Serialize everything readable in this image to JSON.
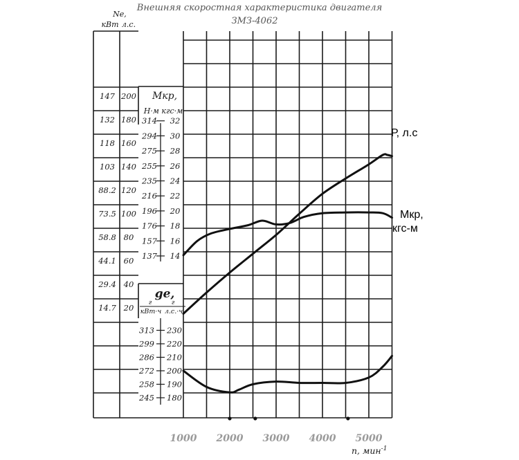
{
  "chart_data": {
    "type": "line",
    "title": "Внешняя скоростная характеристика двигателя",
    "subtitle": "ЗМЗ-4062",
    "xlabel": "n, мин",
    "xlabel_sup": "-1",
    "xlim": [
      1000,
      5500
    ],
    "x_ticks": [
      "1000",
      "2000",
      "3000",
      "4000",
      "5000"
    ],
    "power_axis": {
      "header_symbol": "Ne,",
      "unit_kw": "кВт",
      "unit_hp": "л.с.",
      "ticks": [
        {
          "kw": "147",
          "hp": "200",
          "hp_val": 200
        },
        {
          "kw": "132",
          "hp": "180",
          "hp_val": 180
        },
        {
          "kw": "118",
          "hp": "160",
          "hp_val": 160
        },
        {
          "kw": "103",
          "hp": "140",
          "hp_val": 140
        },
        {
          "kw": "88.2",
          "hp": "120",
          "hp_val": 120
        },
        {
          "kw": "73.5",
          "hp": "100",
          "hp_val": 100
        },
        {
          "kw": "58.8",
          "hp": "80",
          "hp_val": 80
        },
        {
          "kw": "44.1",
          "hp": "60",
          "hp_val": 60
        },
        {
          "kw": "29.4",
          "hp": "40",
          "hp_val": 40
        },
        {
          "kw": "14.7",
          "hp": "20",
          "hp_val": 20
        }
      ]
    },
    "torque_axis": {
      "header_symbol": "Мкр,",
      "units": "Н·м кгс·м",
      "ticks": [
        {
          "nm": "314",
          "kgs": "32",
          "val": 32
        },
        {
          "nm": "294",
          "kgs": "30",
          "val": 30
        },
        {
          "nm": "275",
          "kgs": "28",
          "val": 28
        },
        {
          "nm": "255",
          "kgs": "26",
          "val": 26
        },
        {
          "nm": "235",
          "kgs": "24",
          "val": 24
        },
        {
          "nm": "216",
          "kgs": "22",
          "val": 22
        },
        {
          "nm": "196",
          "kgs": "20",
          "val": 20
        },
        {
          "nm": "176",
          "kgs": "18",
          "val": 18
        },
        {
          "nm": "157",
          "kgs": "16",
          "val": 16
        },
        {
          "nm": "137",
          "kgs": "14",
          "val": 14
        }
      ]
    },
    "fuel_axis": {
      "header_symbol": "ge,",
      "unit_left": "кВт·ч",
      "unit_right": "л.с.·ч",
      "unit_num": "г",
      "ticks": [
        {
          "kwh": "313",
          "hph": "230",
          "val": 230
        },
        {
          "kwh": "299",
          "hph": "220",
          "val": 220
        },
        {
          "kwh": "286",
          "hph": "210",
          "val": 210
        },
        {
          "kwh": "272",
          "hph": "200",
          "val": 200
        },
        {
          "kwh": "258",
          "hph": "190",
          "val": 190
        },
        {
          "kwh": "245",
          "hph": "180",
          "val": 180
        }
      ]
    },
    "series": [
      {
        "name": "P, л.с",
        "axis": "power_hp",
        "x": [
          1000,
          1500,
          2000,
          2500,
          3000,
          3500,
          4000,
          4500,
          5000,
          5300,
          5400,
          5500
        ],
        "values": [
          15,
          33,
          50,
          66,
          82,
          100,
          117,
          130,
          142,
          150,
          150,
          149
        ]
      },
      {
        "name": "Мкр, кгс-м",
        "axis": "torque_kgsm",
        "x": [
          1000,
          1300,
          1600,
          2000,
          2400,
          2700,
          3000,
          3300,
          3600,
          4000,
          4500,
          5000,
          5300,
          5500
        ],
        "values": [
          14.1,
          16.0,
          17.0,
          17.6,
          18.1,
          18.7,
          18.2,
          18.4,
          19.2,
          19.7,
          19.8,
          19.8,
          19.7,
          19.1
        ]
      },
      {
        "name": "ge",
        "axis": "fuel_g_hph",
        "x": [
          1000,
          1500,
          2000,
          2200,
          2500,
          3000,
          3500,
          4000,
          4500,
          5000,
          5300,
          5500
        ],
        "values": [
          200,
          188,
          184,
          186,
          190,
          192,
          191,
          191,
          191,
          195,
          203,
          211
        ]
      }
    ],
    "series_labels": [
      {
        "line1": "Р, л.с"
      },
      {
        "line1": "Мкр,",
        "line2": "кгс-м"
      }
    ]
  }
}
